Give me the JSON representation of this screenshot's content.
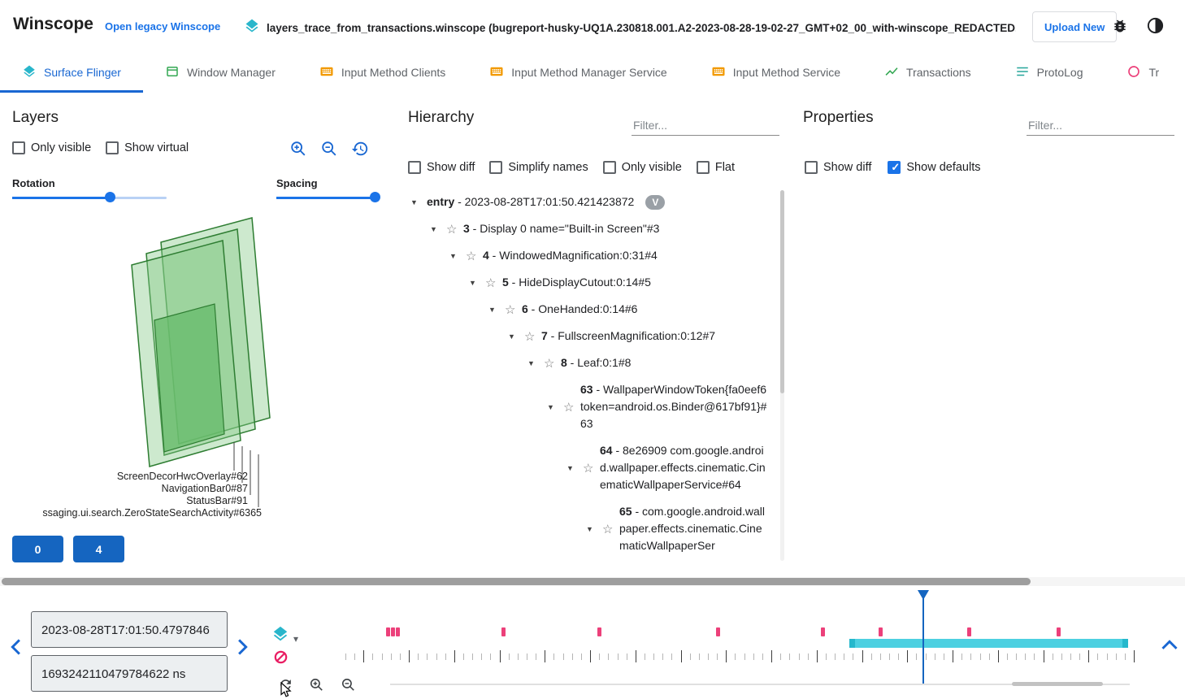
{
  "colors": {
    "accent": "#1967d2",
    "link_blue": "#1a73e8",
    "button_blue": "#1565c0",
    "marker_pink": "#ec407a",
    "trace_teal": "#4dd0e1",
    "layer_fill_green": "#81c784",
    "layer_stroke_green": "#2e7d32"
  },
  "header": {
    "app_title": "Winscope",
    "legacy_link": "Open legacy Winscope",
    "file_name": "layers_trace_from_transactions.winscope (bugreport-husky-UQ1A.230818.001.A2-2023-08-28-19-02-27_GMT+02_00_with-winscope_REDACTED.zip)",
    "upload_button": "Upload New"
  },
  "tabs": {
    "items": [
      {
        "label": "Surface Flinger",
        "active": true
      },
      {
        "label": "Window Manager",
        "active": false
      },
      {
        "label": "Input Method Clients",
        "active": false
      },
      {
        "label": "Input Method Manager Service",
        "active": false
      },
      {
        "label": "Input Method Service",
        "active": false
      },
      {
        "label": "Transactions",
        "active": false
      },
      {
        "label": "ProtoLog",
        "active": false
      },
      {
        "label": "Tr",
        "active": false
      }
    ]
  },
  "layers": {
    "title": "Layers",
    "checkbox_only_visible": "Only visible",
    "checkbox_show_virtual": "Show virtual",
    "rotation_label": "Rotation",
    "spacing_label": "Spacing",
    "layer_labels": [
      "ScreenDecorHwcOverlay#62",
      "NavigationBar0#87",
      "StatusBar#91",
      "ssaging.ui.search.ZeroStateSearchActivity#6365"
    ],
    "nav_buttons": [
      "0",
      "4"
    ]
  },
  "hierarchy": {
    "title": "Hierarchy",
    "filter_placeholder": "Filter...",
    "options": [
      "Show diff",
      "Simplify names",
      "Only visible",
      "Flat"
    ],
    "tree": [
      {
        "id": "entry",
        "name": "2023-08-28T17:01:50.421423872",
        "indent": 0,
        "star": false,
        "badge": "V"
      },
      {
        "id": "3",
        "name": "Display 0 name=\"Built-in Screen\"#3",
        "indent": 1,
        "star": true
      },
      {
        "id": "4",
        "name": "WindowedMagnification:0:31#4",
        "indent": 2,
        "star": true
      },
      {
        "id": "5",
        "name": "HideDisplayCutout:0:14#5",
        "indent": 3,
        "star": true
      },
      {
        "id": "6",
        "name": "OneHanded:0:14#6",
        "indent": 4,
        "star": true
      },
      {
        "id": "7",
        "name": "FullscreenMagnification:0:12#7",
        "indent": 5,
        "star": true
      },
      {
        "id": "8",
        "name": "Leaf:0:1#8",
        "indent": 6,
        "star": true
      },
      {
        "id": "63",
        "name": "WallpaperWindowToken{fa0eef6 token=android.os.Binder@617bf91}#63",
        "indent": 7,
        "star": true
      },
      {
        "id": "64",
        "name": "8e26909 com.google.android.wallpaper.effects.cinematic.CinematicWallpaperService#64",
        "indent": 8,
        "star": true
      },
      {
        "id": "65",
        "name": "com.google.android.wallpaper.effects.cinematic.CinematicWallpaperSer",
        "indent": 9,
        "star": true
      }
    ]
  },
  "properties": {
    "title": "Properties",
    "filter_placeholder": "Filter...",
    "show_diff": "Show diff",
    "show_defaults": "Show defaults"
  },
  "timeline": {
    "human_time": "2023-08-28T17:01:50.4797846",
    "ns_time": "1693242110479784622 ns",
    "markers_pct": [
      5.6,
      6.3,
      6.9,
      20.2,
      32.3,
      47.3,
      60.5,
      67.8,
      79.0,
      90.3
    ],
    "cursor_pct": 73.3,
    "teal_bar": {
      "start_pct": 64.1,
      "end_pct": 99.3
    }
  }
}
